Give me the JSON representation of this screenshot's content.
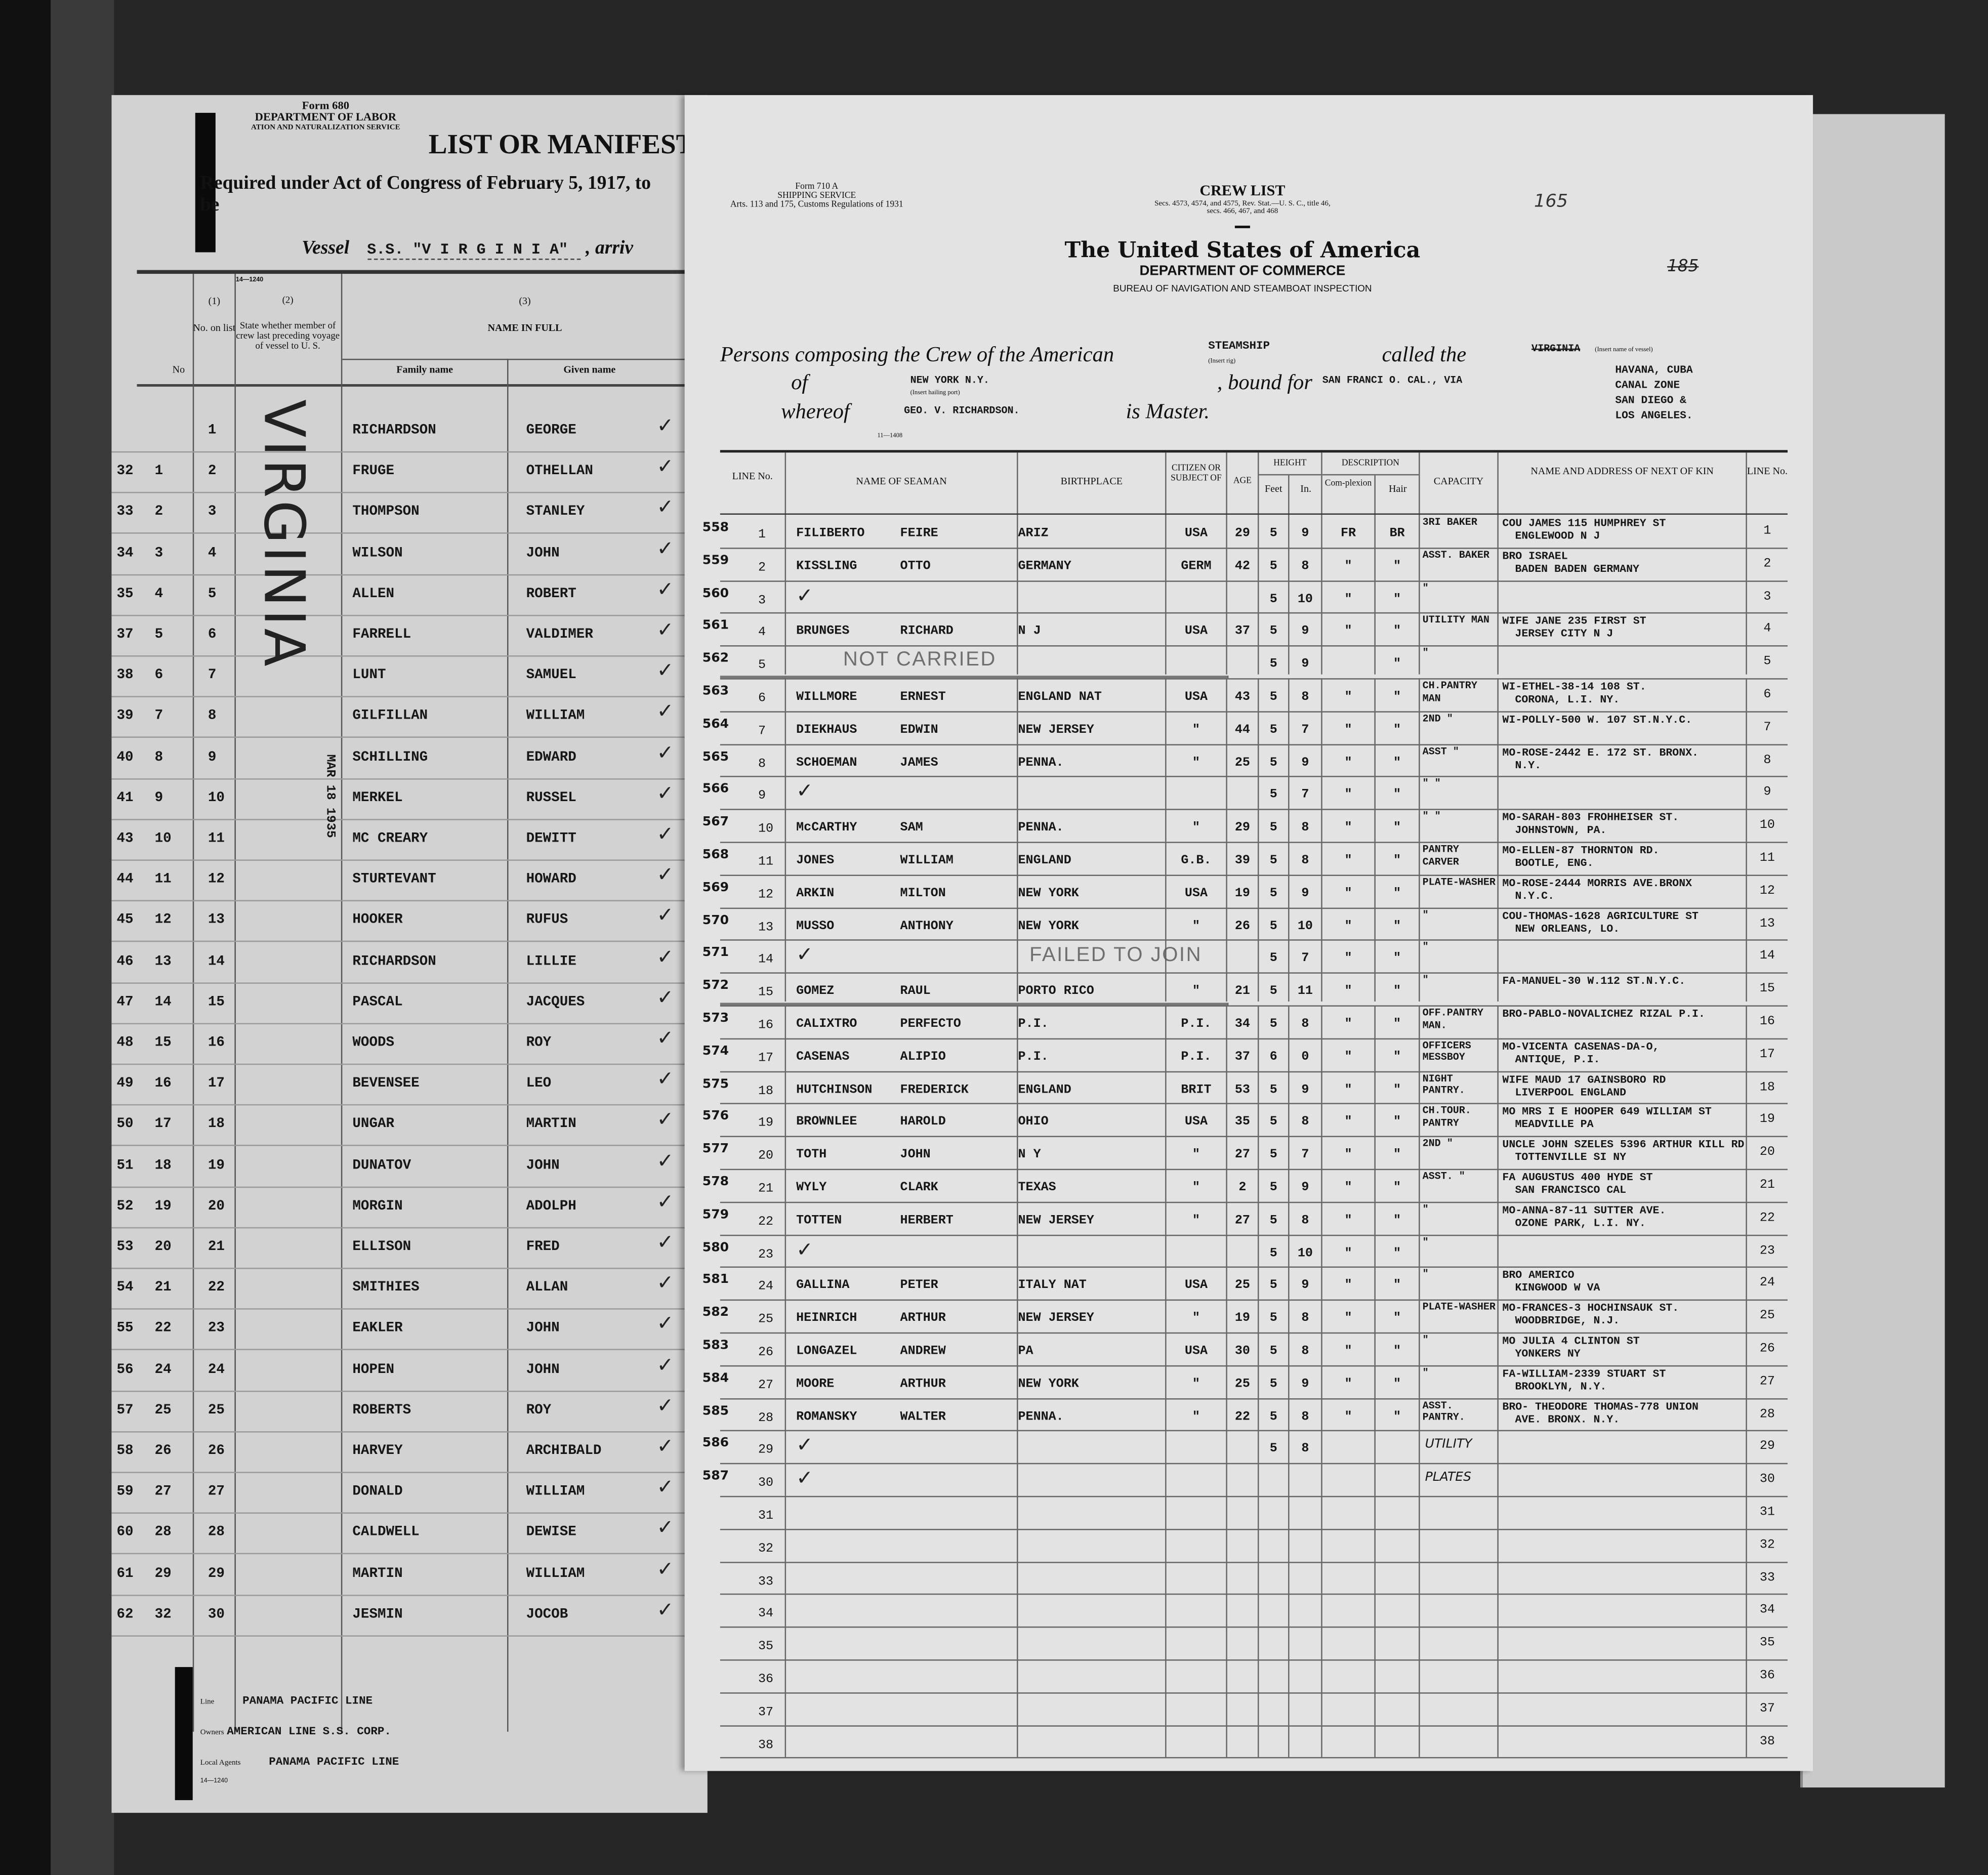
{
  "manifest": {
    "form": "Form 680",
    "department": "DEPARTMENT OF LABOR",
    "service": "ATION AND NATURALIZATION SERVICE",
    "title": "LIST OR MANIFEST",
    "subtitle": "Required under Act of Congress of February 5, 1917, to be",
    "vessel_label": "Vessel",
    "vessel": "S.S. \"V I R G I N I A\"",
    "vessel_after": ", arriv",
    "print_code": "14—1240",
    "headers": {
      "no": "No",
      "col1_num": "(1)",
      "col1": "No. on list",
      "col2_num": "(2)",
      "col2": "State whether member of crew last preceding voyage of vessel to U. S.",
      "col3_num": "(3)",
      "col3": "NAME IN FULL",
      "family": "Family name",
      "given": "Given name"
    },
    "stamp_name": "VIRGINIA",
    "stamp_date": "MAR 18 1935",
    "rows": [
      {
        "outer": "",
        "no": "",
        "n": "1",
        "family": "RICHARDSON",
        "given": "GEORGE"
      },
      {
        "outer": "32",
        "no": "1",
        "n": "2",
        "family": "FRUGE",
        "given": "OTHELLAN"
      },
      {
        "outer": "33",
        "no": "2",
        "n": "3",
        "family": "THOMPSON",
        "given": "STANLEY"
      },
      {
        "outer": "34",
        "no": "3",
        "n": "4",
        "family": "WILSON",
        "given": "JOHN"
      },
      {
        "outer": "35",
        "no": "4",
        "n": "5",
        "family": "ALLEN",
        "given": "ROBERT"
      },
      {
        "outer": "37",
        "no": "5",
        "n": "6",
        "family": "FARRELL",
        "given": "VALDIMER"
      },
      {
        "outer": "38",
        "no": "6",
        "n": "7",
        "family": "LUNT",
        "given": "SAMUEL"
      },
      {
        "outer": "39",
        "no": "7",
        "n": "8",
        "family": "GILFILLAN",
        "given": "WILLIAM"
      },
      {
        "outer": "40",
        "no": "8",
        "n": "9",
        "family": "SCHILLING",
        "given": "EDWARD"
      },
      {
        "outer": "41",
        "no": "9",
        "n": "10",
        "family": "MERKEL",
        "given": "RUSSEL"
      },
      {
        "outer": "43",
        "no": "10",
        "n": "11",
        "family": "MC CREARY",
        "given": "DEWITT"
      },
      {
        "outer": "44",
        "no": "11",
        "n": "12",
        "family": "STURTEVANT",
        "given": "HOWARD"
      },
      {
        "outer": "45",
        "no": "12",
        "n": "13",
        "family": "HOOKER",
        "given": "RUFUS"
      },
      {
        "outer": "46",
        "no": "13",
        "n": "14",
        "family": "RICHARDSON",
        "given": "LILLIE"
      },
      {
        "outer": "47",
        "no": "14",
        "n": "15",
        "family": "PASCAL",
        "given": "JACQUES"
      },
      {
        "outer": "48",
        "no": "15",
        "n": "16",
        "family": "WOODS",
        "given": "ROY"
      },
      {
        "outer": "49",
        "no": "16",
        "n": "17",
        "family": "BEVENSEE",
        "given": "LEO"
      },
      {
        "outer": "50",
        "no": "17",
        "n": "18",
        "family": "UNGAR",
        "given": "MARTIN"
      },
      {
        "outer": "51",
        "no": "18",
        "n": "19",
        "family": "DUNATOV",
        "given": "JOHN"
      },
      {
        "outer": "52",
        "no": "19",
        "n": "20",
        "family": "MORGIN",
        "given": "ADOLPH"
      },
      {
        "outer": "53",
        "no": "20",
        "n": "21",
        "family": "ELLISON",
        "given": "FRED"
      },
      {
        "outer": "54",
        "no": "21",
        "n": "22",
        "family": "SMITHIES",
        "given": "ALLAN"
      },
      {
        "outer": "55",
        "no": "22",
        "n": "23",
        "family": "EAKLER",
        "given": "JOHN"
      },
      {
        "outer": "56",
        "no": "24",
        "n": "24",
        "family": "HOPEN",
        "given": "JOHN"
      },
      {
        "outer": "57",
        "no": "25",
        "n": "25",
        "family": "ROBERTS",
        "given": "ROY"
      },
      {
        "outer": "58",
        "no": "26",
        "n": "26",
        "family": "HARVEY",
        "given": "ARCHIBALD"
      },
      {
        "outer": "59",
        "no": "27",
        "n": "27",
        "family": "DONALD",
        "given": "WILLIAM"
      },
      {
        "outer": "60",
        "no": "28",
        "n": "28",
        "family": "CALDWELL",
        "given": "DEWISE"
      },
      {
        "outer": "61",
        "no": "29",
        "n": "29",
        "family": "MARTIN",
        "given": "WILLIAM"
      },
      {
        "outer": "62",
        "no": "32",
        "n": "30",
        "family": "JESMIN",
        "given": "JOCOB"
      }
    ],
    "footer": {
      "line_label": "Line",
      "line": "PANAMA PACIFIC LINE",
      "owners_label": "Owners",
      "owners": "AMERICAN LINE S.S. CORP.",
      "agents_label": "Local Agents",
      "agents": "PANAMA PACIFIC LINE",
      "code": "14—1240"
    }
  },
  "crew_list": {
    "form": "Form 710 A",
    "form_service": "SHIPPING SERVICE",
    "form_regs": "Arts. 113 and 175, Customs Regulations of 1931",
    "title": "CREW LIST",
    "statute": "Secs. 4573, 4574, and 4575, Rev. Stat.—U. S. C., title 46,",
    "statute2": "secs. 466, 467, and 468",
    "page_number": "165",
    "page_number_struck": "185",
    "heading": "The United States of America",
    "department": "DEPARTMENT OF COMMERCE",
    "bureau": "BUREAU OF NAVIGATION AND STEAMBOAT INSPECTION",
    "intro": "Persons composing the Crew of the American",
    "rig": "STEAMSHIP",
    "rig_hint": "(Insert rig)",
    "called": "called the",
    "vessel_name": "VIRGINIA",
    "vessel_hint": "(Insert name of vessel)",
    "of": "of",
    "port": "NEW YORK N.Y.",
    "port_hint": "(Insert hailing port)",
    "bound": ", bound for",
    "destination": "SAN FRANCI O. CAL., VIA",
    "via": [
      "HAVANA, CUBA",
      "CANAL ZONE",
      "SAN DIEGO &",
      "LOS ANGELES."
    ],
    "whereof": "whereof",
    "master": "GEO. V. RICHARDSON.",
    "is_master": "is Master.",
    "print_code": "11—1408",
    "headers": {
      "line": "LINE No.",
      "name": "NAME OF SEAMAN",
      "birthplace": "BIRTHPLACE",
      "citizen": "CITIZEN OR SUBJECT OF",
      "age": "AGE",
      "height": "HEIGHT",
      "feet": "Feet",
      "in": "In.",
      "description": "DESCRIPTION",
      "complexion": "Com-plexion",
      "hair": "Hair",
      "capacity": "CAPACITY",
      "kin": "NAME AND ADDRESS OF NEXT OF KIN",
      "line2": "LINE No."
    },
    "stamps": {
      "not_carried": "NOT CARRIED",
      "failed": "FAILED TO JOIN"
    },
    "rows": [
      {
        "no": "558",
        "line": "1",
        "family": "FILIBERTO",
        "given": "FEIRE",
        "birth": "ARIZ",
        "cit": "USA",
        "age": "29",
        "ft": "5",
        "in": "9",
        "comp": "FR",
        "hair": "BR",
        "cap": "3RI BAKER",
        "kin1": "COU JAMES 115 HUMPHREY ST",
        "kin2": "ENGLEWOOD N J"
      },
      {
        "no": "559",
        "line": "2",
        "family": "KISSLING",
        "given": "OTTO",
        "birth": "GERMANY",
        "cit": "GERM",
        "age": "42",
        "ft": "5",
        "in": "8",
        "comp": "\"",
        "hair": "\"",
        "cap": "ASST. BAKER",
        "kin1": "BRO ISRAEL",
        "kin2": "BADEN BADEN GERMANY"
      },
      {
        "no": "560",
        "line": "3",
        "check": "✓",
        "ft": "5",
        "in": "10",
        "comp": "\"",
        "hair": "\"",
        "cap": "\""
      },
      {
        "no": "561",
        "line": "4",
        "family": "BRUNGES",
        "given": "RICHARD",
        "birth": "N J",
        "cit": "USA",
        "age": "37",
        "ft": "5",
        "in": "9",
        "comp": "\"",
        "hair": "\"",
        "cap": "UTILITY MAN",
        "kin1": "WIFE JANE 235 FIRST ST",
        "kin2": "JERSEY CITY N J"
      },
      {
        "no": "562",
        "line": "5",
        "struck": true,
        "ft": "5",
        "in": "9",
        "hair": "\"",
        "cap": "\""
      },
      {
        "no": "563",
        "line": "6",
        "family": "WILLMORE",
        "given": "ERNEST",
        "birth": "ENGLAND NAT",
        "cit": "USA",
        "age": "43",
        "ft": "5",
        "in": "8",
        "comp": "\"",
        "hair": "\"",
        "cap": "CH.PANTRY MAN",
        "kin1": "WI-ETHEL-38-14 108 ST.",
        "kin2": "CORONA, L.I. NY."
      },
      {
        "no": "564",
        "line": "7",
        "family": "DIEKHAUS",
        "given": "EDWIN",
        "birth": "NEW JERSEY",
        "cit": "\"",
        "age": "44",
        "ft": "5",
        "in": "7",
        "comp": "\"",
        "hair": "\"",
        "cap": "2ND \"",
        "kin1": "WI-POLLY-500 W. 107 ST.N.Y.C."
      },
      {
        "no": "565",
        "line": "8",
        "family": "SCHOEMAN",
        "given": "JAMES",
        "birth": "PENNA.",
        "cit": "\"",
        "age": "25",
        "ft": "5",
        "in": "9",
        "comp": "\"",
        "hair": "\"",
        "cap": "ASST \"",
        "kin1": "MO-ROSE-2442 E. 172 ST. BRONX.",
        "kin2": "N.Y."
      },
      {
        "no": "566",
        "line": "9",
        "check": "✓",
        "ft": "5",
        "in": "7",
        "comp": "\"",
        "hair": "\"",
        "cap": "\" \""
      },
      {
        "no": "567",
        "line": "10",
        "family": "McCARTHY",
        "given": "SAM",
        "birth": "PENNA.",
        "cit": "\"",
        "age": "29",
        "ft": "5",
        "in": "8",
        "comp": "\"",
        "hair": "\"",
        "cap": "\" \"",
        "kin1": "MO-SARAH-803 FROHHEISER ST.",
        "kin2": "JOHNSTOWN, PA."
      },
      {
        "no": "568",
        "line": "11",
        "family": "JONES",
        "given": "WILLIAM",
        "birth": "ENGLAND",
        "cit": "G.B.",
        "age": "39",
        "ft": "5",
        "in": "8",
        "comp": "\"",
        "hair": "\"",
        "cap": "PANTRY CARVER",
        "kin1": "MO-ELLEN-87 THORNTON RD.",
        "kin2": "BOOTLE, ENG."
      },
      {
        "no": "569",
        "line": "12",
        "family": "ARKIN",
        "given": "MILTON",
        "birth": "NEW YORK",
        "cit": "USA",
        "age": "19",
        "ft": "5",
        "in": "9",
        "comp": "\"",
        "hair": "\"",
        "cap": "PLATE-WASHER",
        "kin1": "MO-ROSE-2444 MORRIS AVE.BRONX",
        "kin2": "N.Y.C."
      },
      {
        "no": "570",
        "line": "13",
        "family": "MUSSO",
        "given": "ANTHONY",
        "birth": "NEW YORK",
        "cit": "\"",
        "age": "26",
        "ft": "5",
        "in": "10",
        "comp": "\"",
        "hair": "\"",
        "cap": "\"",
        "kin1": "COU-THOMAS-1628 AGRICULTURE ST",
        "kin2": "NEW ORLEANS, LO."
      },
      {
        "no": "571",
        "line": "14",
        "check": "✓",
        "ft": "5",
        "in": "7",
        "comp": "\"",
        "hair": "\"",
        "cap": "\""
      },
      {
        "no": "572",
        "line": "15",
        "struck": true,
        "family": "GOMEZ",
        "given": "RAUL",
        "birth": "PORTO RICO",
        "cit": "\"",
        "age": "21",
        "ft": "5",
        "in": "11",
        "comp": "\"",
        "hair": "\"",
        "cap": "\"",
        "kin1": "FA-MANUEL-30 W.112 ST.N.Y.C."
      },
      {
        "no": "573",
        "line": "16",
        "family": "CALIXTRO",
        "given": "PERFECTO",
        "birth": "P.I.",
        "cit": "P.I.",
        "age": "34",
        "ft": "5",
        "in": "8",
        "comp": "\"",
        "hair": "\"",
        "cap": "OFF.PANTRY MAN.",
        "kin1": "BRO-PABLO-NOVALICHEZ RIZAL P.I."
      },
      {
        "no": "574",
        "line": "17",
        "family": "CASENAS",
        "given": "ALIPIO",
        "birth": "P.I.",
        "cit": "P.I.",
        "age": "37",
        "ft": "6",
        "in": "0",
        "comp": "\"",
        "hair": "\"",
        "cap": "OFFICERS MESSBOY",
        "kin1": "MO-VICENTA CASENAS-DA-O,",
        "kin2": "ANTIQUE, P.I."
      },
      {
        "no": "575",
        "line": "18",
        "family": "HUTCHINSON",
        "given": "FREDERICK",
        "birth": "ENGLAND",
        "cit": "BRIT",
        "age": "53",
        "ft": "5",
        "in": "9",
        "comp": "\"",
        "hair": "\"",
        "cap": "NIGHT PANTRY.",
        "kin1": "WIFE MAUD 17 GAINSBORO RD",
        "kin2": "LIVERPOOL ENGLAND"
      },
      {
        "no": "576",
        "line": "19",
        "family": "BROWNLEE",
        "given": "HAROLD",
        "birth": "OHIO",
        "cit": "USA",
        "age": "35",
        "ft": "5",
        "in": "8",
        "comp": "\"",
        "hair": "\"",
        "cap": "CH.TOUR. PANTRY",
        "kin1": "MO MRS I E HOOPER 649 WILLIAM ST",
        "kin2": "MEADVILLE PA"
      },
      {
        "no": "577",
        "line": "20",
        "family": "TOTH",
        "given": "JOHN",
        "birth": "N Y",
        "cit": "\"",
        "age": "27",
        "ft": "5",
        "in": "7",
        "comp": "\"",
        "hair": "\"",
        "cap": "2ND \"",
        "kin1": "UNCLE JOHN SZELES 5396 ARTHUR KILL RD",
        "kin2": "TOTTENVILLE SI NY"
      },
      {
        "no": "578",
        "line": "21",
        "family": "WYLY",
        "given": "CLARK",
        "birth": "TEXAS",
        "cit": "\"",
        "age": "2",
        "ft": "5",
        "in": "9",
        "comp": "\"",
        "hair": "\"",
        "cap": "ASST. \"",
        "kin1": "FA AUGUSTUS 400 HYDE ST",
        "kin2": "SAN FRANCISCO CAL"
      },
      {
        "no": "579",
        "line": "22",
        "family": "TOTTEN",
        "given": "HERBERT",
        "birth": "NEW JERSEY",
        "cit": "\"",
        "age": "27",
        "ft": "5",
        "in": "8",
        "comp": "\"",
        "hair": "\"",
        "cap": "\"",
        "kin1": "MO-ANNA-87-11 SUTTER AVE.",
        "kin2": "OZONE PARK, L.I. NY."
      },
      {
        "no": "580",
        "line": "23",
        "check": "✓",
        "ft": "5",
        "in": "10",
        "comp": "\"",
        "hair": "\"",
        "cap": "\""
      },
      {
        "no": "581",
        "line": "24",
        "family": "GALLINA",
        "given": "PETER",
        "birth": "ITALY NAT",
        "cit": "USA",
        "age": "25",
        "ft": "5",
        "in": "9",
        "comp": "\"",
        "hair": "\"",
        "cap": "\"",
        "kin1": "BRO AMERICO",
        "kin2": "KINGWOOD W VA"
      },
      {
        "no": "582",
        "line": "25",
        "family": "HEINRICH",
        "given": "ARTHUR",
        "birth": "NEW JERSEY",
        "cit": "\"",
        "age": "19",
        "ft": "5",
        "in": "8",
        "comp": "\"",
        "hair": "\"",
        "cap": "PLATE-WASHER",
        "kin1": "MO-FRANCES-3 HOCHINSAUK ST.",
        "kin2": "WOODBRIDGE, N.J."
      },
      {
        "no": "583",
        "line": "26",
        "family": "LONGAZEL",
        "given": "ANDREW",
        "birth": "PA",
        "cit": "USA",
        "age": "30",
        "ft": "5",
        "in": "8",
        "comp": "\"",
        "hair": "\"",
        "cap": "\"",
        "kin1": "MO JULIA 4 CLINTON ST",
        "kin2": "YONKERS NY"
      },
      {
        "no": "584",
        "line": "27",
        "family": "MOORE",
        "given": "ARTHUR",
        "birth": "NEW YORK",
        "cit": "\"",
        "age": "25",
        "ft": "5",
        "in": "9",
        "comp": "\"",
        "hair": "\"",
        "cap": "\"",
        "kin1": "FA-WILLIAM-2339 STUART ST",
        "kin2": "BROOKLYN, N.Y."
      },
      {
        "no": "585",
        "line": "28",
        "family": "ROMANSKY",
        "given": "WALTER",
        "birth": "PENNA.",
        "cit": "\"",
        "age": "22",
        "ft": "5",
        "in": "8",
        "comp": "\"",
        "hair": "\"",
        "cap": "ASST. PANTRY.",
        "kin1": "BRO- THEODORE THOMAS-778 UNION",
        "kin2": "AVE. BRONX. N.Y."
      },
      {
        "no": "586",
        "line": "29",
        "check": "✓",
        "ft": "5",
        "in": "8",
        "cap_hand": "UTILITY"
      },
      {
        "no": "587",
        "line": "30",
        "check": "✓",
        "cap_hand": "PLATES"
      },
      {
        "line": "31"
      },
      {
        "line": "32"
      },
      {
        "line": "33"
      },
      {
        "line": "34"
      },
      {
        "line": "35"
      },
      {
        "line": "36"
      },
      {
        "line": "37"
      },
      {
        "line": "38"
      }
    ]
  }
}
